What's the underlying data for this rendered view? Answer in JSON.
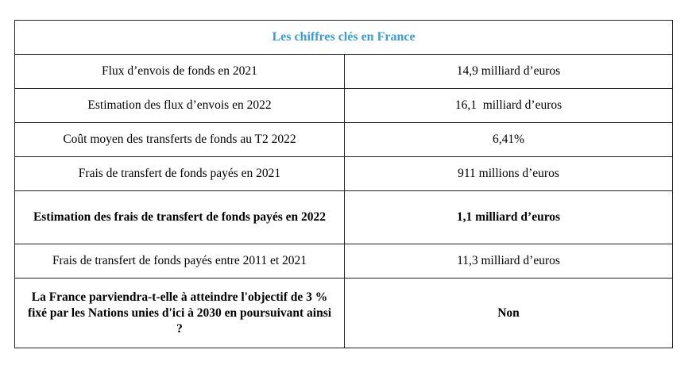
{
  "table": {
    "title": "Les chiffres clés en France",
    "rows": [
      {
        "label": "Flux d’envois de fonds en 2021",
        "value": "14,9 milliard d’euros",
        "bold": false
      },
      {
        "label": "Estimation des flux d’envois en 2022",
        "value": "16,1  milliard d’euros",
        "bold": false
      },
      {
        "label": "Coût moyen des transferts de fonds au T2 2022",
        "value": "6,41%",
        "bold": false
      },
      {
        "label": "Frais de transfert de fonds payés en 2021",
        "value": "911 millions d’euros",
        "bold": false
      },
      {
        "label": "Estimation des frais de transfert de fonds payés en 2022",
        "value": "1,1 milliard d’euros",
        "bold": true
      },
      {
        "label": "Frais de transfert de fonds payés entre 2011 et 2021",
        "value": "11,3 milliard d’euros",
        "bold": false
      },
      {
        "label": "La France parviendra-t-elle à atteindre l'objectif de 3 % fixé par les Nations unies d'ici à 2030 en poursuivant ainsi ?",
        "value": "Non",
        "bold": true
      }
    ]
  },
  "colors": {
    "title": "#3c9bd0"
  }
}
